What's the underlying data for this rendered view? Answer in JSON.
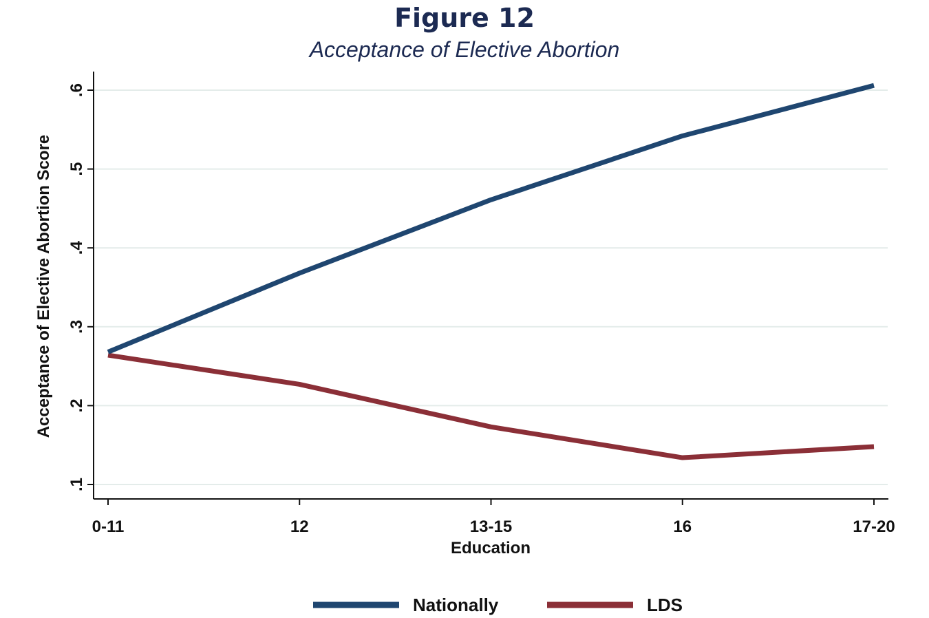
{
  "figure": {
    "title": "Figure 12",
    "subtitle": "Acceptance of Elective Abortion"
  },
  "chart_data": {
    "type": "line",
    "title": "Figure 12",
    "subtitle": "Acceptance of Elective Abortion",
    "xlabel": "Education",
    "ylabel": "Acceptance of Elective Abortion Score",
    "categories": [
      "0-11",
      "12",
      "13-15",
      "16",
      "17-20"
    ],
    "ylim": [
      0.09,
      0.615
    ],
    "yticks": [
      {
        "value": 0.1,
        "label": ".1"
      },
      {
        "value": 0.2,
        "label": ".2"
      },
      {
        "value": 0.3,
        "label": ".3"
      },
      {
        "value": 0.4,
        "label": ".4"
      },
      {
        "value": 0.5,
        "label": ".5"
      },
      {
        "value": 0.6,
        "label": ".6"
      }
    ],
    "grid": true,
    "legend_position": "bottom",
    "series": [
      {
        "name": "Nationally",
        "color": "#1f4670",
        "values": [
          0.268,
          0.368,
          0.461,
          0.542,
          0.606
        ]
      },
      {
        "name": "LDS",
        "color": "#8b2f37",
        "values": [
          0.264,
          0.227,
          0.173,
          0.134,
          0.148
        ]
      }
    ]
  }
}
